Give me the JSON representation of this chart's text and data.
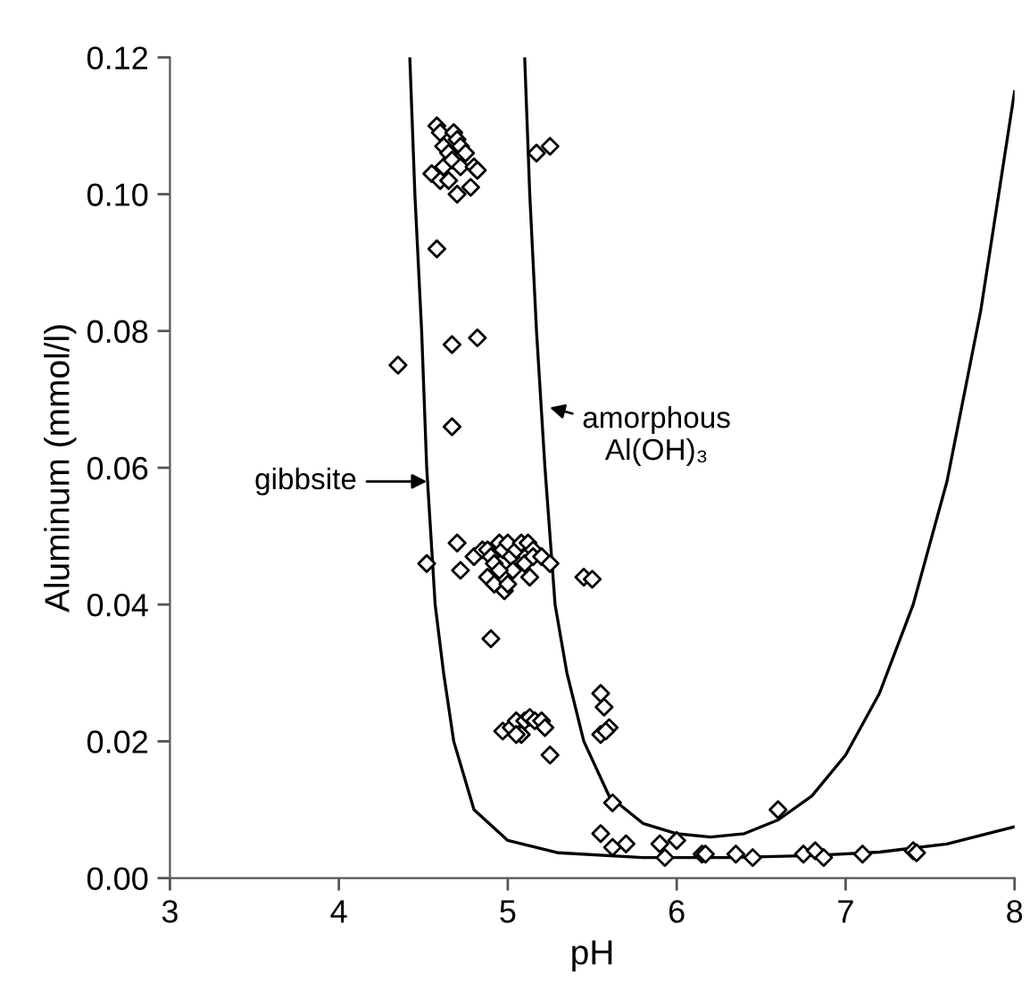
{
  "chart_data": {
    "type": "scatter",
    "xlabel": "pH",
    "ylabel": "Aluminum (mmol/l)",
    "xlim": [
      3,
      8
    ],
    "ylim": [
      0,
      0.12
    ],
    "xticks": [
      3,
      4,
      5,
      6,
      7,
      8
    ],
    "yticks": [
      {
        "value": 0,
        "label": "0.00"
      },
      {
        "value": 0.02,
        "label": "0.02"
      },
      {
        "value": 0.04,
        "label": "0.04"
      },
      {
        "value": 0.06,
        "label": "0.06"
      },
      {
        "value": 0.08,
        "label": "0.08"
      },
      {
        "value": 0.1,
        "label": "0.10"
      },
      {
        "value": 0.12,
        "label": "0.12"
      }
    ],
    "grid": false,
    "legend": false,
    "series": [
      {
        "color": "#000000",
        "marker": "diamond",
        "x": [
          4.58,
          4.6,
          4.62,
          4.65,
          4.68,
          4.7,
          4.72,
          4.75,
          4.62,
          4.67,
          4.72,
          4.8,
          4.55,
          4.6,
          4.65,
          4.7,
          4.78,
          4.82,
          5.17,
          5.25,
          4.58,
          4.35,
          4.67,
          4.82,
          4.67,
          4.52,
          4.7,
          4.72,
          4.8,
          4.85,
          4.88,
          4.9,
          4.92,
          4.95,
          4.97,
          5.0,
          5.02,
          5.05,
          5.08,
          5.12,
          5.15,
          4.88,
          4.92,
          4.98,
          5.0,
          5.03,
          4.95,
          5.1,
          5.15,
          5.2,
          5.25,
          5.13,
          4.9,
          5.45,
          5.5,
          4.97,
          5.02,
          5.05,
          5.08,
          5.1,
          5.13,
          5.16,
          5.2,
          5.22,
          5.25,
          5.05,
          5.55,
          5.57,
          5.6,
          5.55,
          5.58,
          5.62,
          5.55,
          5.62,
          5.7,
          5.9,
          5.93,
          6.0,
          6.15,
          6.17,
          6.35,
          6.45,
          6.6,
          6.75,
          6.82,
          6.87,
          7.1,
          7.4,
          7.42
        ],
        "values": [
          0.11,
          0.109,
          0.107,
          0.106,
          0.109,
          0.108,
          0.107,
          0.106,
          0.104,
          0.105,
          0.104,
          0.104,
          0.103,
          0.102,
          0.102,
          0.1,
          0.101,
          0.1035,
          0.106,
          0.107,
          0.092,
          0.075,
          0.078,
          0.079,
          0.066,
          0.046,
          0.049,
          0.045,
          0.047,
          0.048,
          0.048,
          0.047,
          0.046,
          0.049,
          0.048,
          0.049,
          0.047,
          0.048,
          0.049,
          0.049,
          0.048,
          0.044,
          0.043,
          0.042,
          0.043,
          0.045,
          0.045,
          0.046,
          0.047,
          0.047,
          0.046,
          0.044,
          0.035,
          0.044,
          0.0437,
          0.0215,
          0.022,
          0.023,
          0.021,
          0.023,
          0.0235,
          0.023,
          0.023,
          0.022,
          0.018,
          0.021,
          0.027,
          0.025,
          0.022,
          0.021,
          0.0215,
          0.011,
          0.0065,
          0.0045,
          0.005,
          0.005,
          0.003,
          0.0055,
          0.0035,
          0.0035,
          0.0035,
          0.003,
          0.01,
          0.0035,
          0.004,
          0.003,
          0.0035,
          0.004,
          0.0037
        ]
      },
      {
        "type": "line",
        "color": "#000000",
        "marker": "none",
        "line_style": "solid",
        "x": [
          4.42,
          4.45,
          4.49,
          4.52,
          4.57,
          4.62,
          4.68,
          4.8,
          5.0,
          5.3,
          5.8,
          6.3,
          6.8,
          7.2,
          7.6,
          8.0
        ],
        "values": [
          0.12,
          0.1,
          0.08,
          0.06,
          0.04,
          0.03,
          0.02,
          0.01,
          0.0055,
          0.0037,
          0.003,
          0.003,
          0.0033,
          0.0038,
          0.005,
          0.0075
        ]
      },
      {
        "type": "line",
        "color": "#000000",
        "marker": "none",
        "line_style": "solid",
        "x": [
          5.1,
          5.13,
          5.17,
          5.22,
          5.28,
          5.35,
          5.45,
          5.6,
          5.8,
          6.0,
          6.2,
          6.4,
          6.6,
          6.8,
          7.0,
          7.2,
          7.4,
          7.6,
          7.8,
          8.0
        ],
        "values": [
          0.12,
          0.1,
          0.08,
          0.06,
          0.04,
          0.03,
          0.02,
          0.012,
          0.008,
          0.0065,
          0.006,
          0.0065,
          0.0085,
          0.012,
          0.018,
          0.027,
          0.04,
          0.058,
          0.083,
          0.115
        ]
      }
    ],
    "annotations": [
      {
        "text": "gibbsite",
        "x": 4.55,
        "y": 0.058
      },
      {
        "text": "amorphous\nAl(OH)₃",
        "x": 5.22,
        "y": 0.069
      }
    ]
  }
}
